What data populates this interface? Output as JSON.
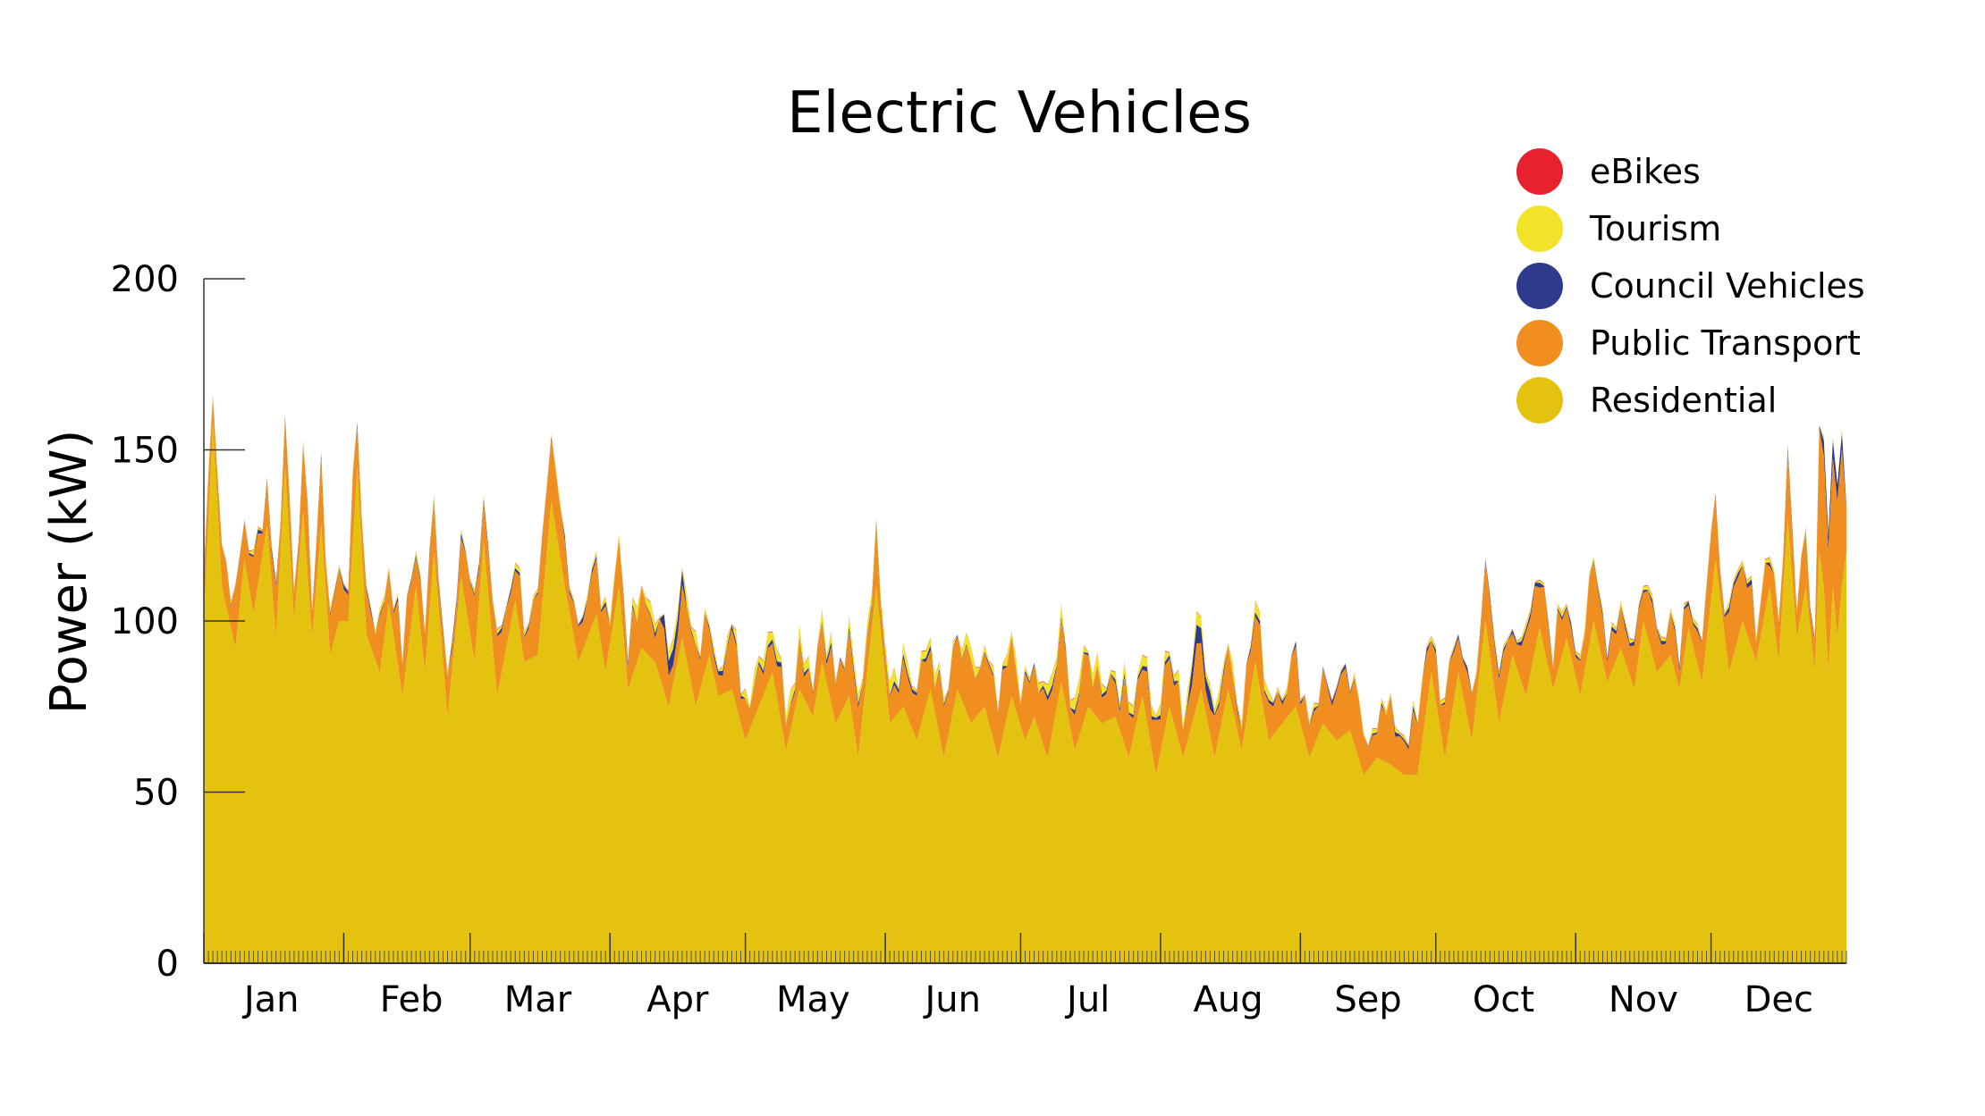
{
  "chart_data": {
    "type": "area",
    "stacked": true,
    "title": "Electric Vehicles",
    "xlabel": "",
    "ylabel": "Power (kW)",
    "ylim": [
      0,
      200
    ],
    "yticks": [
      0,
      50,
      100,
      150,
      200
    ],
    "x_unit": "day of year",
    "x_range": [
      1,
      365
    ],
    "month_labels": [
      "Jan",
      "Feb",
      "Mar",
      "Apr",
      "May",
      "Jun",
      "Jul",
      "Aug",
      "Sep",
      "Oct",
      "Nov",
      "Dec"
    ],
    "legend_position": "top-right",
    "legend_order": [
      "eBikes",
      "Tourism",
      "Council Vehicles",
      "Public Transport",
      "Residential"
    ],
    "residential_anchors": [
      [
        1,
        100
      ],
      [
        3,
        158
      ],
      [
        5,
        110
      ],
      [
        8,
        92
      ],
      [
        10,
        118
      ],
      [
        12,
        102
      ],
      [
        15,
        128
      ],
      [
        17,
        95
      ],
      [
        19,
        145
      ],
      [
        21,
        100
      ],
      [
        23,
        132
      ],
      [
        25,
        95
      ],
      [
        27,
        128
      ],
      [
        29,
        90
      ],
      [
        31,
        100
      ],
      [
        33,
        100
      ],
      [
        35,
        145
      ],
      [
        37,
        96
      ],
      [
        40,
        85
      ],
      [
        42,
        105
      ],
      [
        45,
        78
      ],
      [
        48,
        110
      ],
      [
        50,
        85
      ],
      [
        52,
        120
      ],
      [
        55,
        72
      ],
      [
        58,
        113
      ],
      [
        61,
        88
      ],
      [
        63,
        123
      ],
      [
        66,
        78
      ],
      [
        70,
        106
      ],
      [
        72,
        88
      ],
      [
        75,
        90
      ],
      [
        78,
        135
      ],
      [
        81,
        110
      ],
      [
        84,
        88
      ],
      [
        88,
        102
      ],
      [
        90,
        85
      ],
      [
        93,
        110
      ],
      [
        95,
        80
      ],
      [
        98,
        92
      ],
      [
        101,
        88
      ],
      [
        104,
        75
      ],
      [
        107,
        95
      ],
      [
        110,
        75
      ],
      [
        113,
        90
      ],
      [
        115,
        78
      ],
      [
        118,
        80
      ],
      [
        121,
        65
      ],
      [
        124,
        75
      ],
      [
        127,
        85
      ],
      [
        130,
        62
      ],
      [
        133,
        80
      ],
      [
        136,
        72
      ],
      [
        138,
        88
      ],
      [
        141,
        70
      ],
      [
        144,
        78
      ],
      [
        146,
        60
      ],
      [
        150,
        110
      ],
      [
        153,
        70
      ],
      [
        156,
        75
      ],
      [
        159,
        65
      ],
      [
        162,
        80
      ],
      [
        165,
        60
      ],
      [
        168,
        80
      ],
      [
        171,
        70
      ],
      [
        174,
        75
      ],
      [
        177,
        60
      ],
      [
        180,
        78
      ],
      [
        183,
        65
      ],
      [
        185,
        72
      ],
      [
        188,
        60
      ],
      [
        191,
        82
      ],
      [
        194,
        62
      ],
      [
        197,
        75
      ],
      [
        200,
        70
      ],
      [
        203,
        72
      ],
      [
        206,
        60
      ],
      [
        209,
        78
      ],
      [
        212,
        55
      ],
      [
        215,
        75
      ],
      [
        218,
        60
      ],
      [
        220,
        70
      ],
      [
        222,
        80
      ],
      [
        225,
        60
      ],
      [
        228,
        80
      ],
      [
        231,
        62
      ],
      [
        234,
        88
      ],
      [
        237,
        65
      ],
      [
        240,
        70
      ],
      [
        243,
        75
      ],
      [
        246,
        60
      ],
      [
        249,
        70
      ],
      [
        252,
        65
      ],
      [
        255,
        68
      ],
      [
        258,
        55
      ],
      [
        261,
        60
      ],
      [
        264,
        58
      ],
      [
        267,
        55
      ],
      [
        270,
        55
      ],
      [
        273,
        85
      ],
      [
        276,
        60
      ],
      [
        279,
        85
      ],
      [
        282,
        65
      ],
      [
        285,
        100
      ],
      [
        288,
        70
      ],
      [
        291,
        90
      ],
      [
        294,
        78
      ],
      [
        297,
        98
      ],
      [
        300,
        80
      ],
      [
        303,
        95
      ],
      [
        306,
        78
      ],
      [
        309,
        100
      ],
      [
        312,
        82
      ],
      [
        315,
        92
      ],
      [
        318,
        80
      ],
      [
        320,
        100
      ],
      [
        323,
        85
      ],
      [
        326,
        90
      ],
      [
        328,
        80
      ],
      [
        330,
        98
      ],
      [
        333,
        82
      ],
      [
        336,
        118
      ],
      [
        339,
        85
      ],
      [
        342,
        100
      ],
      [
        345,
        88
      ],
      [
        348,
        110
      ],
      [
        350,
        88
      ],
      [
        352,
        130
      ],
      [
        354,
        95
      ],
      [
        356,
        110
      ],
      [
        358,
        85
      ],
      [
        359,
        120
      ],
      [
        360,
        110
      ],
      [
        361,
        85
      ],
      [
        362,
        110
      ],
      [
        363,
        95
      ],
      [
        364,
        110
      ],
      [
        365,
        120
      ]
    ],
    "layer_increments": {
      "Public Transport": "typically 5-25 kW above Residential; widening to ~40 kW around 360-364",
      "Council Vehicles": "mostly 0-2 kW; spikes ~5 kW near Apr 15, Aug 10, Dec 28",
      "Tourism": "mostly 0-5 kW; up to ~8 kW in Apr-Aug",
      "eBikes": "negligible (~0 kW)"
    },
    "series": [
      {
        "name": "eBikes",
        "color": "#e8212e"
      },
      {
        "name": "Tourism",
        "color": "#f2e32a"
      },
      {
        "name": "Council Vehicles",
        "color": "#2e3a8c"
      },
      {
        "name": "Public Transport",
        "color": "#f08f1f"
      },
      {
        "name": "Residential",
        "color": "#e3c310"
      }
    ]
  }
}
